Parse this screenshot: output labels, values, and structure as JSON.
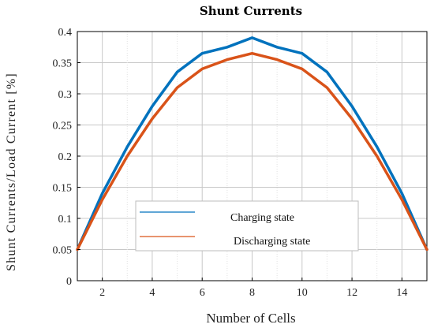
{
  "chart_data": {
    "type": "line",
    "title": "Shunt Currents",
    "xlabel": "Number of Cells",
    "ylabel": "Shunt Currents/Load Current [%]",
    "xlim": [
      1,
      15
    ],
    "ylim": [
      0,
      0.4
    ],
    "x_ticks": [
      2,
      4,
      6,
      8,
      10,
      12,
      14
    ],
    "x_tick_labels": [
      "2",
      "4",
      "6",
      "8",
      "10",
      "12",
      "14"
    ],
    "y_ticks": [
      0,
      0.05,
      0.1,
      0.15,
      0.2,
      0.25,
      0.3,
      0.35,
      0.4
    ],
    "y_tick_labels": [
      "0",
      "0.05",
      "0.1",
      "0.15",
      "0.2",
      "0.25",
      "0.3",
      "0.35",
      "0.4"
    ],
    "x_minor_grid": [
      1,
      3,
      5,
      7,
      9,
      11,
      13,
      15
    ],
    "grid": true,
    "legend_position": "lower-center",
    "x": [
      1,
      2,
      3,
      4,
      5,
      6,
      7,
      8,
      9,
      10,
      11,
      12,
      13,
      14,
      15
    ],
    "series": [
      {
        "name": "Charging state",
        "color": "#0072BD",
        "values": [
          0.05,
          0.14,
          0.215,
          0.28,
          0.335,
          0.365,
          0.375,
          0.39,
          0.375,
          0.365,
          0.335,
          0.28,
          0.215,
          0.14,
          0.05
        ]
      },
      {
        "name": "Discharging state",
        "color": "#D95319",
        "values": [
          0.05,
          0.13,
          0.2,
          0.26,
          0.31,
          0.34,
          0.355,
          0.365,
          0.355,
          0.34,
          0.31,
          0.26,
          0.2,
          0.13,
          0.05
        ]
      }
    ]
  }
}
